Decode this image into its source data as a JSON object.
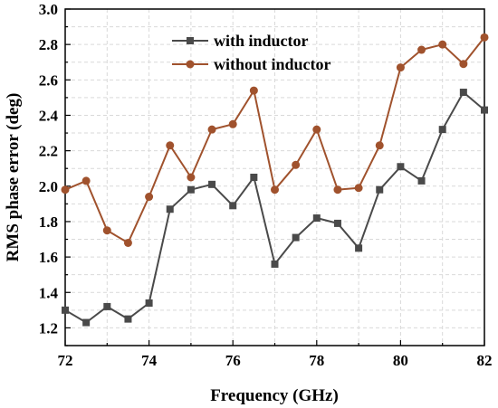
{
  "chart_data": {
    "type": "line",
    "xlabel": "Frequency (GHz)",
    "ylabel": "RMS phase error (deg)",
    "xlim": [
      72,
      82
    ],
    "ylim": [
      1.1,
      3.0
    ],
    "x_ticks": [
      "72",
      "74",
      "76",
      "78",
      "80",
      "82"
    ],
    "y_ticks": [
      "1.2",
      "1.4",
      "1.6",
      "1.8",
      "2.0",
      "2.2",
      "2.4",
      "2.6",
      "2.8",
      "3.0"
    ],
    "grid": true,
    "legend_position": "top-center",
    "x": [
      72,
      72.5,
      73,
      73.5,
      74,
      74.5,
      75,
      75.5,
      76,
      76.5,
      77,
      77.5,
      78,
      78.5,
      79,
      79.5,
      80,
      80.5,
      81,
      81.5,
      82
    ],
    "series": [
      {
        "name": "with inductor",
        "color": "#4a4a4a",
        "marker": "square",
        "values": [
          1.3,
          1.23,
          1.32,
          1.25,
          1.34,
          1.87,
          1.98,
          2.01,
          1.89,
          2.05,
          1.56,
          1.71,
          1.82,
          1.79,
          1.65,
          1.98,
          2.11,
          2.03,
          2.32,
          2.53,
          2.43
        ]
      },
      {
        "name": "without inductor",
        "color": "#a0522d",
        "marker": "circle",
        "values": [
          1.98,
          2.03,
          1.75,
          1.68,
          1.94,
          2.23,
          2.05,
          2.32,
          2.35,
          2.54,
          1.98,
          2.12,
          2.32,
          1.98,
          1.99,
          2.23,
          2.67,
          2.77,
          2.8,
          2.69,
          2.84
        ]
      }
    ]
  }
}
